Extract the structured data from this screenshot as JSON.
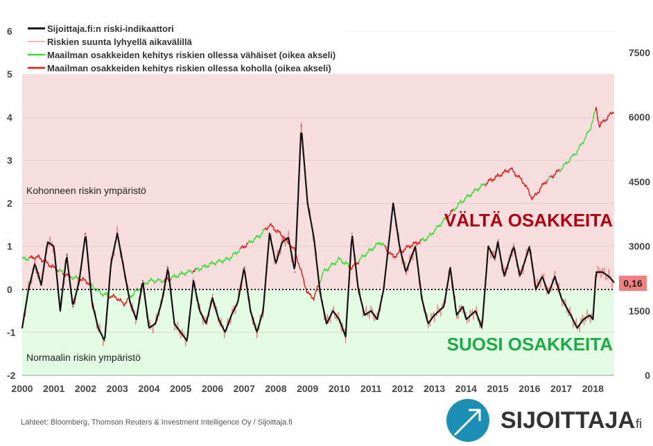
{
  "chart_data": {
    "type": "line",
    "legend": [
      "Sijoittaja.fi:n riski-indikaattori",
      "Riskien suunta lyhyellä aikavälillä",
      "Maailman osakkeiden kehitys riskien ollessa vähäiset (oikea akseli)",
      "Maailman osakkeiden kehitys riskien ollessa koholla (oikea akseli)"
    ],
    "legend_placement": "top-left",
    "colors": {
      "indicator": "#111111",
      "short": "#f07070",
      "low": "#33dd33",
      "high": "#ee1111",
      "pink": "#f7dede",
      "green": "#e3fbe3",
      "dark_red": "#b0000f",
      "dark_green": "#1faa4a",
      "label_bg": "#f08080"
    },
    "ylim_left": [
      -2,
      6
    ],
    "left_ticks": [
      "6",
      "5",
      "4",
      "3",
      "2",
      "1",
      "0",
      "-1",
      "-2"
    ],
    "ylim_right": [
      0,
      7500
    ],
    "right_ticks": [
      "7500",
      "6000",
      "4500",
      "3000",
      "1500",
      "0"
    ],
    "xlim": [
      2000,
      2018.67
    ],
    "x_ticks": [
      "2000",
      "2001",
      "2002",
      "2003",
      "2004",
      "2005",
      "2006",
      "2007",
      "2008",
      "2009",
      "2010",
      "2011",
      "2012",
      "2013",
      "2014",
      "2015",
      "2016",
      "2017",
      "2018"
    ],
    "zone_high_label": "Kohonneen riskin ympäristö",
    "zone_low_label": "Normaalin riskin ympäristö",
    "avoid_label": "VÄLTÄ OSAKKEITA",
    "favor_label": "SUOSI OSAKKEITA",
    "current_value_label": "0,16",
    "indicator": {
      "x": [
        2000,
        2000.2,
        2000.4,
        2000.6,
        2000.8,
        2001,
        2001.2,
        2001.4,
        2001.6,
        2001.8,
        2002,
        2002.2,
        2002.4,
        2002.6,
        2002.8,
        2003,
        2003.2,
        2003.4,
        2003.6,
        2003.8,
        2004,
        2004.2,
        2004.4,
        2004.6,
        2004.8,
        2005,
        2005.2,
        2005.4,
        2005.6,
        2005.8,
        2006,
        2006.2,
        2006.4,
        2006.6,
        2006.8,
        2007,
        2007.2,
        2007.4,
        2007.6,
        2007.8,
        2008,
        2008.2,
        2008.4,
        2008.6,
        2008.8,
        2009,
        2009.2,
        2009.4,
        2009.6,
        2009.8,
        2010,
        2010.2,
        2010.4,
        2010.6,
        2010.8,
        2011,
        2011.2,
        2011.4,
        2011.7,
        2011.9,
        2012.1,
        2012.4,
        2012.6,
        2012.8,
        2013,
        2013.3,
        2013.5,
        2013.7,
        2013.9,
        2014,
        2014.3,
        2014.5,
        2014.7,
        2014.9,
        2015,
        2015.2,
        2015.5,
        2015.7,
        2016,
        2016.2,
        2016.4,
        2016.6,
        2016.8,
        2017,
        2017.3,
        2017.5,
        2017.7,
        2017.9,
        2018,
        2018.1,
        2018.3,
        2018.5,
        2018.67
      ],
      "y": [
        -0.9,
        0.0,
        0.6,
        0.1,
        1.1,
        1.0,
        -0.5,
        0.8,
        -0.4,
        0.2,
        1.3,
        -0.3,
        -0.9,
        -1.2,
        0.6,
        1.3,
        0.5,
        -0.3,
        -0.7,
        0.2,
        -0.9,
        -0.8,
        -0.3,
        0.5,
        -0.8,
        -1.0,
        -1.2,
        0.2,
        -0.5,
        -0.8,
        -0.2,
        -0.7,
        -1.0,
        -0.6,
        -0.3,
        0.5,
        -0.5,
        -1.0,
        -0.5,
        1.3,
        0.6,
        1.1,
        1.2,
        0.4,
        3.8,
        2.0,
        1.2,
        -0.1,
        -0.8,
        -0.5,
        -0.7,
        -1.1,
        1.3,
        0.0,
        -0.6,
        -0.5,
        -0.7,
        0.0,
        2.0,
        1.0,
        0.4,
        1.0,
        -0.2,
        -0.8,
        -0.6,
        -0.4,
        0.5,
        -0.6,
        -0.4,
        -0.7,
        -0.5,
        -0.9,
        1.0,
        0.7,
        1.1,
        0.3,
        1.0,
        0.3,
        1.0,
        0.0,
        0.3,
        -0.1,
        0.3,
        -0.2,
        -0.6,
        -0.9,
        -0.7,
        -0.6,
        -0.7,
        0.4,
        0.4,
        0.3,
        0.16
      ]
    },
    "world_index": {
      "x": [
        2000,
        2000.5,
        2001,
        2001.5,
        2002,
        2002.5,
        2003,
        2003.2,
        2003.5,
        2004,
        2004.5,
        2005,
        2005.5,
        2006,
        2006.5,
        2007,
        2007.5,
        2007.8,
        2008.2,
        2008.6,
        2009,
        2009.2,
        2009.5,
        2010,
        2010.4,
        2010.8,
        2011.3,
        2011.7,
        2012.2,
        2012.8,
        2013.3,
        2013.8,
        2014.3,
        2014.7,
        2015.4,
        2015.8,
        2016.1,
        2016.5,
        2017,
        2017.5,
        2017.9,
        2018.1,
        2018.2,
        2018.67
      ],
      "y": [
        2700,
        2750,
        2500,
        2300,
        2200,
        1900,
        1800,
        1650,
        1900,
        2200,
        2200,
        2350,
        2450,
        2600,
        2700,
        3000,
        3250,
        3500,
        3250,
        2900,
        1900,
        1800,
        2400,
        2700,
        2500,
        2800,
        3100,
        2750,
        3000,
        3200,
        3600,
        4000,
        4300,
        4500,
        4800,
        4500,
        4100,
        4500,
        4800,
        5200,
        5700,
        6200,
        5800,
        6150
      ]
    }
  },
  "source": "Lähteet: Bloomberg, Thomson Reuters & Investment Intelligence Oy / Sijoittaja.fi",
  "logo": {
    "text": "SIJOITTAJA",
    "suffix": ".fi"
  }
}
